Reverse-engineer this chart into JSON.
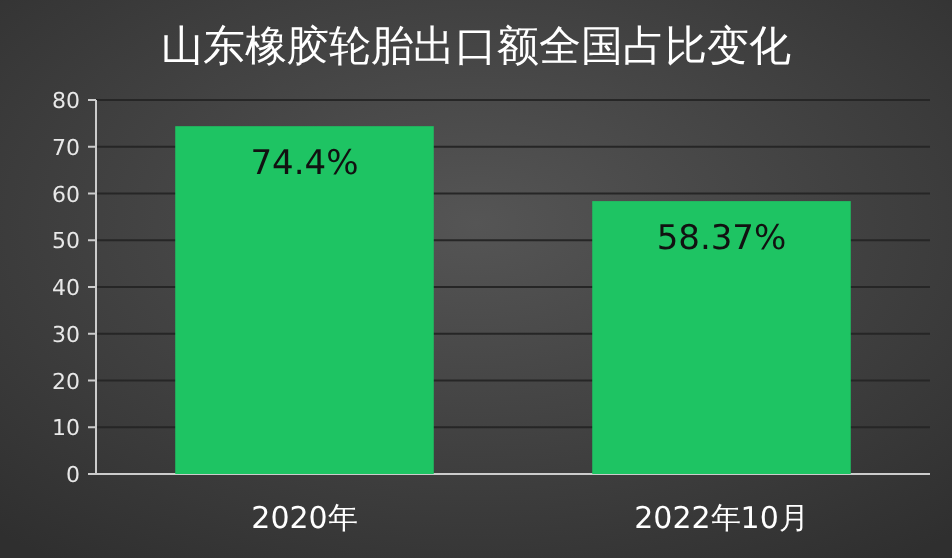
{
  "chart_data": {
    "type": "bar",
    "title": "山东橡胶轮胎出口额全国占比变化",
    "categories": [
      "2020年",
      "2022年10月"
    ],
    "values": [
      74.4,
      58.37
    ],
    "value_labels": [
      "74.4%",
      "58.37%"
    ],
    "color": "#1ec463",
    "ylim": [
      0,
      80
    ],
    "yticks": [
      0,
      10,
      20,
      30,
      40,
      50,
      60,
      70,
      80
    ],
    "grid": "y"
  }
}
